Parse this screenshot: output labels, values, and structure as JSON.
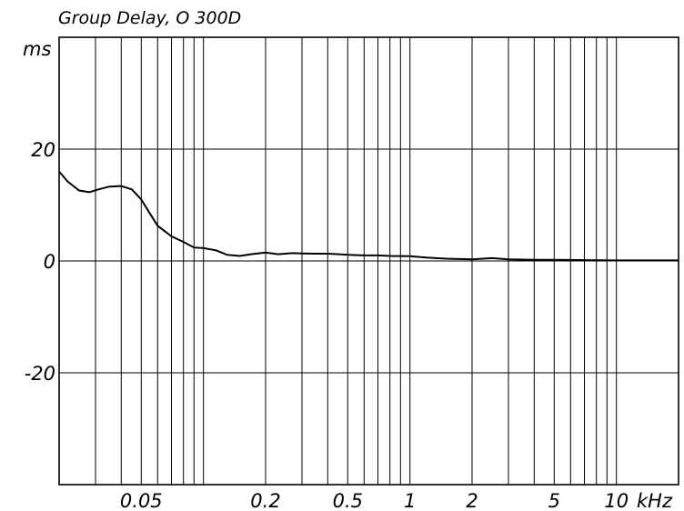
{
  "chart_data": {
    "type": "line",
    "title": "Group Delay,  O 300D",
    "ylabel": "ms",
    "xlabel": "",
    "x_scale": "log",
    "xlim": [
      0.02,
      20
    ],
    "ylim": [
      -40,
      40
    ],
    "grid": true,
    "y_ticks": [
      {
        "value": 20,
        "label": "20"
      },
      {
        "value": 0,
        "label": "0"
      },
      {
        "value": -20,
        "label": "-20"
      }
    ],
    "x_ticks": [
      {
        "value": 0.05,
        "label": "0.05"
      },
      {
        "value": 0.2,
        "label": "0.2"
      },
      {
        "value": 0.5,
        "label": "0.5"
      },
      {
        "value": 1,
        "label": "1"
      },
      {
        "value": 2,
        "label": "2"
      },
      {
        "value": 5,
        "label": "5"
      },
      {
        "value": 10,
        "label": "10"
      }
    ],
    "x_unit_label": "kHz",
    "series": [
      {
        "x": [
          0.02,
          0.022,
          0.025,
          0.028,
          0.031,
          0.035,
          0.04,
          0.045,
          0.05,
          0.055,
          0.06,
          0.07,
          0.08,
          0.09,
          0.1,
          0.115,
          0.13,
          0.15,
          0.17,
          0.2,
          0.23,
          0.27,
          0.3,
          0.35,
          0.4,
          0.5,
          0.6,
          0.7,
          0.8,
          1,
          1.2,
          1.5,
          2,
          2.5,
          3,
          4,
          5,
          7,
          10,
          15,
          20
        ],
        "values": [
          16,
          14.2,
          12.6,
          12.3,
          12.8,
          13.3,
          13.4,
          12.8,
          11,
          8.5,
          6.3,
          4.4,
          3.4,
          2.4,
          2.3,
          1.9,
          1.1,
          0.9,
          1.2,
          1.5,
          1.2,
          1.4,
          1.35,
          1.3,
          1.3,
          1.1,
          1.0,
          1.0,
          0.9,
          0.85,
          0.6,
          0.4,
          0.3,
          0.5,
          0.3,
          0.2,
          0.2,
          0.15,
          0.1,
          0.1,
          0.1
        ]
      }
    ]
  }
}
